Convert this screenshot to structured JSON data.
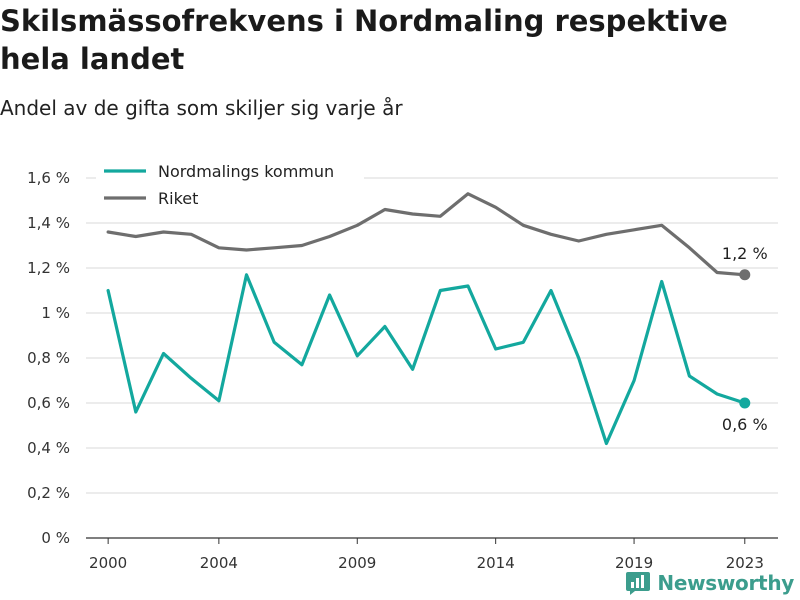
{
  "header": {
    "title": "Skilsmässofrekvens i Nordmaling respektive hela landet",
    "subtitle": "Andel av de gifta som skiljer sig varje år"
  },
  "brand": {
    "name": "Newsworthy",
    "icon": "newsworthy-logo-icon",
    "color": "#3c9d8d"
  },
  "chart_data": {
    "type": "line",
    "title": "Skilsmässofrekvens i Nordmaling respektive hela landet",
    "subtitle": "Andel av de gifta som skiljer sig varje år",
    "x": [
      2000,
      2001,
      2002,
      2003,
      2004,
      2005,
      2006,
      2007,
      2008,
      2009,
      2010,
      2011,
      2012,
      2013,
      2014,
      2015,
      2016,
      2017,
      2018,
      2019,
      2020,
      2021,
      2022,
      2023
    ],
    "x_ticks": [
      "2000",
      "2004",
      "2009",
      "2014",
      "2019",
      "2023"
    ],
    "x_tick_values": [
      2000,
      2004,
      2009,
      2014,
      2019,
      2023
    ],
    "y_ticks": [
      "0 %",
      "0,2 %",
      "0,4 %",
      "0,6 %",
      "0,8 %",
      "1 %",
      "1,2 %",
      "1,4 %",
      "1,6 %"
    ],
    "y_tick_values": [
      0,
      0.2,
      0.4,
      0.6,
      0.8,
      1.0,
      1.2,
      1.4,
      1.6
    ],
    "ylim": [
      0,
      1.6
    ],
    "xlim": [
      1999.2,
      2024.2
    ],
    "grid": true,
    "legend_position": "top-left",
    "series": [
      {
        "name": "Nordmalings kommun",
        "color": "#13a89e",
        "values": [
          1.1,
          0.56,
          0.82,
          0.71,
          0.61,
          1.17,
          0.87,
          0.77,
          1.08,
          0.81,
          0.94,
          0.75,
          1.1,
          1.12,
          0.84,
          0.87,
          1.1,
          0.8,
          0.42,
          0.7,
          1.14,
          0.72,
          0.64,
          0.6
        ],
        "end_label": "0,6 %"
      },
      {
        "name": "Riket",
        "color": "#6e6e6e",
        "values": [
          1.36,
          1.34,
          1.36,
          1.35,
          1.29,
          1.28,
          1.29,
          1.3,
          1.34,
          1.39,
          1.46,
          1.44,
          1.43,
          1.53,
          1.47,
          1.39,
          1.35,
          1.32,
          1.35,
          1.37,
          1.39,
          1.29,
          1.18,
          1.17
        ],
        "end_label": "1,2 %"
      }
    ]
  }
}
